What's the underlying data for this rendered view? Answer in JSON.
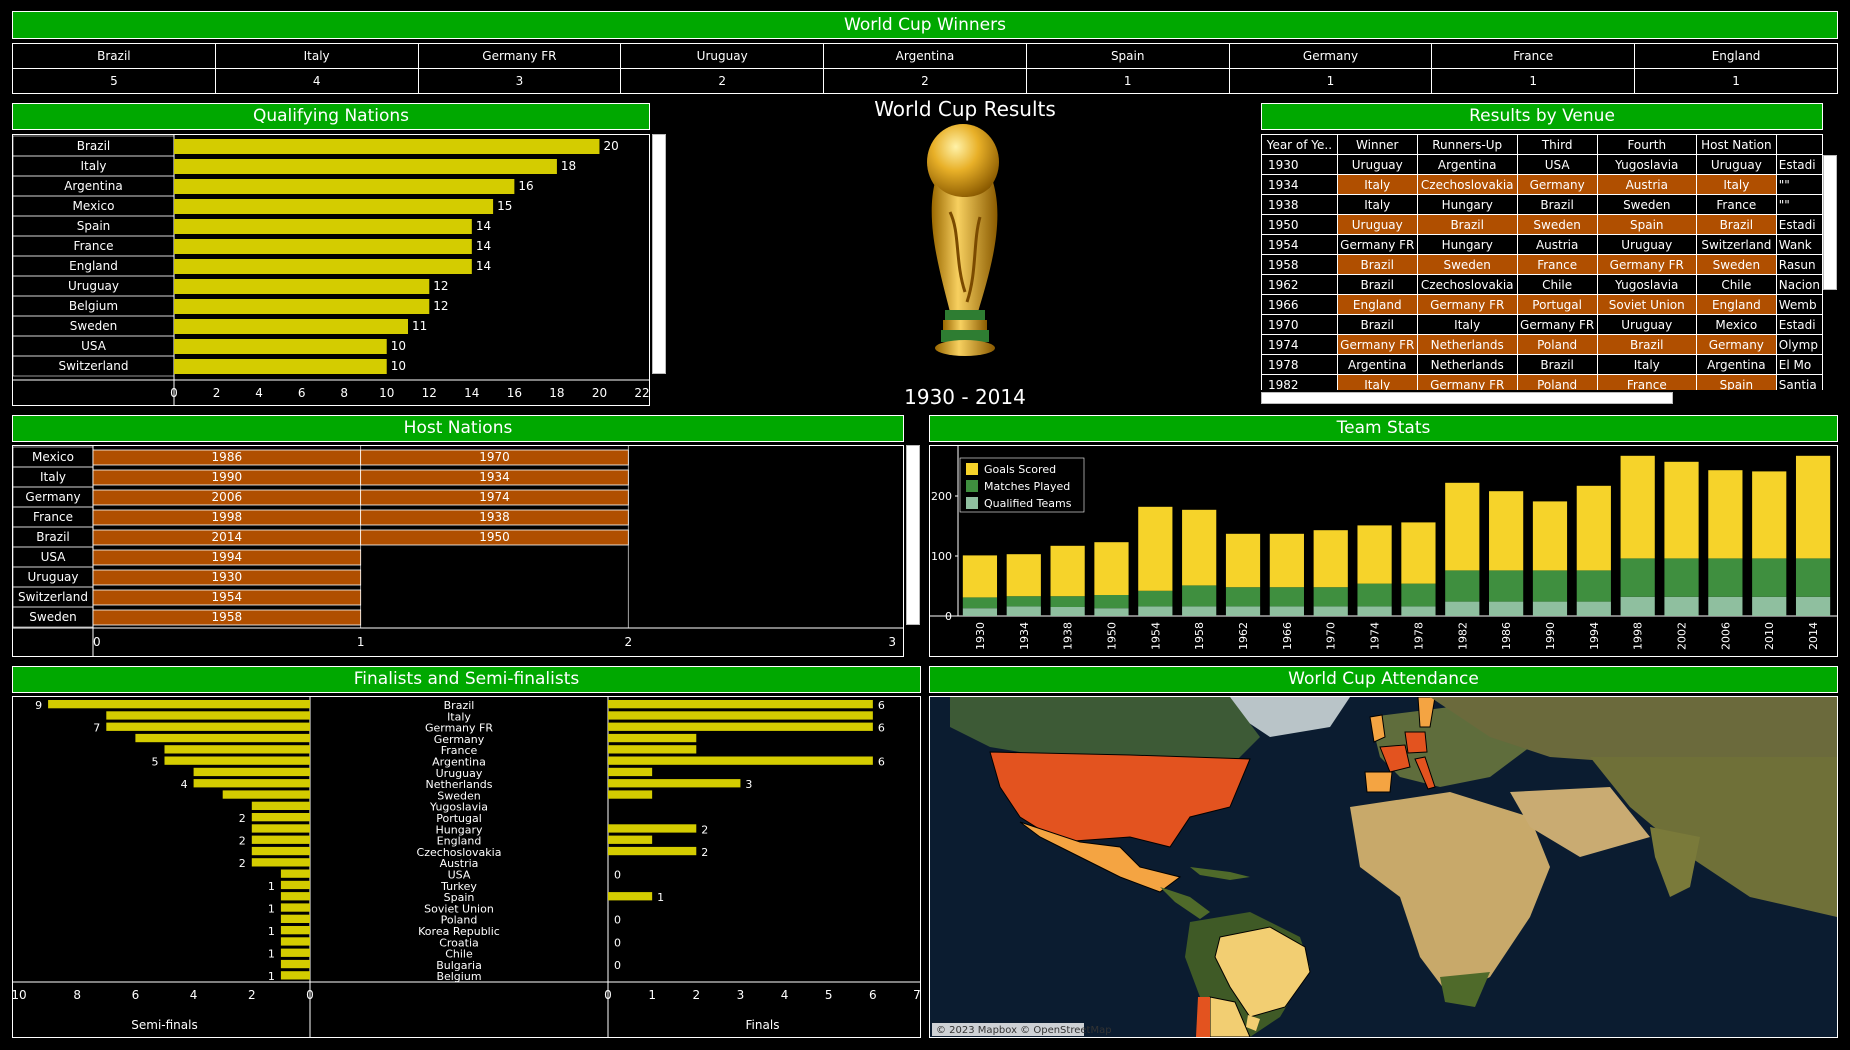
{
  "winners": {
    "header": "World Cup Winners",
    "teams": [
      "Brazil",
      "Italy",
      "Germany FR",
      "Uruguay",
      "Argentina",
      "Spain",
      "Germany",
      "France",
      "England"
    ],
    "wins": [
      5,
      4,
      3,
      2,
      2,
      1,
      1,
      1,
      1
    ]
  },
  "center": {
    "title": "World Cup Results",
    "years": "1930 - 2014"
  },
  "venue": {
    "header": "Results by Venue",
    "columns": [
      "Year of Ye..",
      "Winner",
      "Runners-Up",
      "Third",
      "Fourth",
      "Host Nation"
    ],
    "rows": [
      [
        "1930",
        "Uruguay",
        "Argentina",
        "USA",
        "Yugoslavia",
        "Uruguay",
        "Estadi"
      ],
      [
        "1934",
        "Italy",
        "Czechoslovakia",
        "Germany",
        "Austria",
        "Italy",
        "\"\""
      ],
      [
        "1938",
        "Italy",
        "Hungary",
        "Brazil",
        "Sweden",
        "France",
        "\"\""
      ],
      [
        "1950",
        "Uruguay",
        "Brazil",
        "Sweden",
        "Spain",
        "Brazil",
        "Estadi"
      ],
      [
        "1954",
        "Germany FR",
        "Hungary",
        "Austria",
        "Uruguay",
        "Switzerland",
        "Wank"
      ],
      [
        "1958",
        "Brazil",
        "Sweden",
        "France",
        "Germany FR",
        "Sweden",
        "Rasun"
      ],
      [
        "1962",
        "Brazil",
        "Czechoslovakia",
        "Chile",
        "Yugoslavia",
        "Chile",
        "Nacion"
      ],
      [
        "1966",
        "England",
        "Germany FR",
        "Portugal",
        "Soviet Union",
        "England",
        "Wemb"
      ],
      [
        "1970",
        "Brazil",
        "Italy",
        "Germany FR",
        "Uruguay",
        "Mexico",
        "Estadi"
      ],
      [
        "1974",
        "Germany FR",
        "Netherlands",
        "Poland",
        "Brazil",
        "Germany",
        "Olymp"
      ],
      [
        "1978",
        "Argentina",
        "Netherlands",
        "Brazil",
        "Italy",
        "Argentina",
        "El Mo"
      ],
      [
        "1982",
        "Italy",
        "Germany FR",
        "Poland",
        "France",
        "Spain",
        "Santia"
      ]
    ]
  },
  "chart_data": [
    {
      "id": "qualifying",
      "type": "bar",
      "title": "Qualifying Nations",
      "categories": [
        "Brazil",
        "Italy",
        "Argentina",
        "Mexico",
        "Spain",
        "France",
        "England",
        "Uruguay",
        "Belgium",
        "Sweden",
        "USA",
        "Switzerland"
      ],
      "values": [
        20,
        18,
        16,
        15,
        14,
        14,
        14,
        12,
        12,
        11,
        10,
        10
      ],
      "xlim": [
        0,
        22
      ],
      "xticks": [
        "0",
        "2",
        "4",
        "6",
        "8",
        "10",
        "12",
        "14",
        "16",
        "18",
        "20",
        "22"
      ],
      "color": "#d4cc00"
    },
    {
      "id": "hosts",
      "type": "bar",
      "title": "Host Nations",
      "categories": [
        "Mexico",
        "Italy",
        "Germany",
        "France",
        "Brazil",
        "USA",
        "Uruguay",
        "Switzerland",
        "Sweden"
      ],
      "segments": [
        [
          "1986",
          "1970"
        ],
        [
          "1990",
          "1934"
        ],
        [
          "2006",
          "1974"
        ],
        [
          "1998",
          "1938"
        ],
        [
          "2014",
          "1950"
        ],
        [
          "1994"
        ],
        [
          "1930"
        ],
        [
          "1954"
        ],
        [
          "1958"
        ]
      ],
      "xlim": [
        0,
        3
      ],
      "xticks": [
        "0",
        "1",
        "2",
        "3"
      ],
      "color": "#b04f00"
    },
    {
      "id": "teamstats",
      "type": "bar",
      "title": "Team Stats",
      "categories": [
        "1930",
        "1934",
        "1938",
        "1950",
        "1954",
        "1958",
        "1962",
        "1966",
        "1970",
        "1974",
        "1978",
        "1982",
        "1986",
        "1990",
        "1994",
        "1998",
        "2002",
        "2006",
        "2010",
        "2014"
      ],
      "series": [
        {
          "name": "Goals Scored",
          "color": "#f6d32a",
          "values": [
            70,
            70,
            84,
            88,
            140,
            126,
            89,
            89,
            95,
            97,
            102,
            146,
            132,
            115,
            141,
            171,
            161,
            147,
            145,
            171
          ]
        },
        {
          "name": "Matches Played",
          "color": "#3f8f3f",
          "values": [
            18,
            17,
            18,
            22,
            26,
            35,
            32,
            32,
            32,
            38,
            38,
            52,
            52,
            52,
            52,
            64,
            64,
            64,
            64,
            64
          ]
        },
        {
          "name": "Qualified Teams",
          "color": "#8fbf9f",
          "values": [
            13,
            16,
            15,
            13,
            16,
            16,
            16,
            16,
            16,
            16,
            16,
            24,
            24,
            24,
            24,
            32,
            32,
            32,
            32,
            32
          ]
        }
      ],
      "ylim": [
        0,
        280
      ],
      "yticks": [
        "0",
        "100",
        "200"
      ],
      "legend": "top-left"
    },
    {
      "id": "finalists",
      "type": "bar",
      "title": "Finalists and Semi-finalists",
      "categories": [
        "Brazil",
        "Italy",
        "Germany FR",
        "Germany",
        "France",
        "Argentina",
        "Uruguay",
        "Netherlands",
        "Sweden",
        "Yugoslavia",
        "Portugal",
        "Hungary",
        "England",
        "Czechoslovakia",
        "Austria",
        "USA",
        "Turkey",
        "Spain",
        "Soviet Union",
        "Poland",
        "Korea Republic",
        "Croatia",
        "Chile",
        "Bulgaria",
        "Belgium"
      ],
      "semifinals": [
        9,
        7,
        7,
        6,
        5,
        5,
        4,
        4,
        3,
        2,
        2,
        2,
        2,
        2,
        2,
        1,
        1,
        1,
        1,
        1,
        1,
        1,
        1,
        1,
        1
      ],
      "finals": [
        6,
        6,
        6,
        2,
        2,
        6,
        1,
        3,
        1,
        0,
        0,
        2,
        1,
        2,
        0,
        0,
        0,
        1,
        0,
        0,
        0,
        0,
        0,
        0,
        0
      ],
      "semi_labels": [
        "9",
        "",
        "7",
        "",
        "",
        "5",
        "",
        "4",
        "",
        "",
        "2",
        "",
        "2",
        "",
        "2",
        "",
        "1",
        "",
        "1",
        "",
        "1",
        "",
        "1",
        "",
        "1"
      ],
      "final_labels": [
        "6",
        "",
        "6",
        "",
        "",
        "6",
        "",
        "3",
        "",
        "",
        "",
        "2",
        "",
        "2",
        "",
        "0",
        "",
        "1",
        "",
        "0",
        "",
        "0",
        "",
        "0",
        ""
      ],
      "semi_xlim": [
        0,
        10
      ],
      "final_xlim": [
        0,
        7
      ],
      "semi_ticks": [
        "10",
        "8",
        "6",
        "4",
        "2",
        "0"
      ],
      "final_ticks": [
        "0",
        "1",
        "2",
        "3",
        "4",
        "5",
        "6",
        "7"
      ],
      "semi_label": "Semi-finals",
      "final_label": "Finals",
      "color": "#d4cc00"
    }
  ],
  "map": {
    "header": "World Cup Attendance",
    "credit": "© 2023 Mapbox © OpenStreetMap"
  },
  "colors": {
    "green": "#00a800",
    "orange": "#b04f00",
    "yellow": "#d4cc00"
  }
}
